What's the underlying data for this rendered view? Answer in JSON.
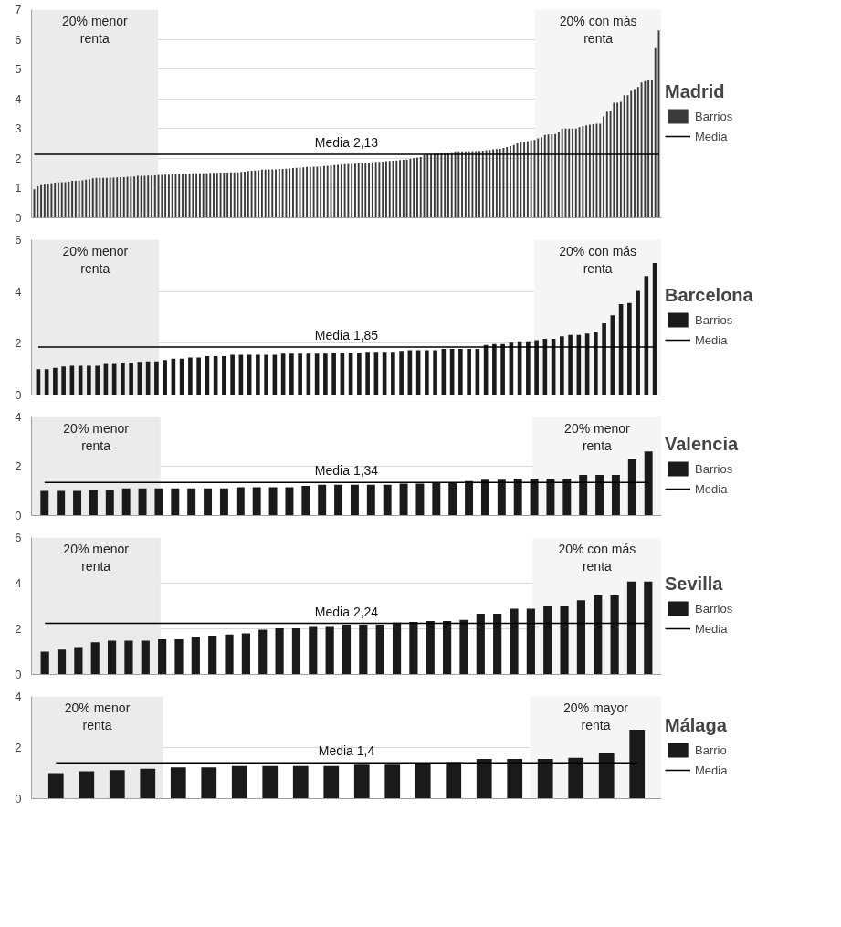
{
  "chart_data": [
    {
      "type": "bar",
      "legend_title": "Madrid",
      "legend": "right",
      "grid": "y",
      "tick_labels": "y",
      "ylim": [
        0,
        7
      ],
      "yticks": [
        0,
        1,
        2,
        3,
        4,
        5,
        6,
        7
      ],
      "categories": [
        null,
        null,
        null,
        null,
        null,
        null,
        null,
        null,
        null,
        null,
        null,
        null,
        null,
        null,
        null,
        null,
        null,
        null,
        null,
        null,
        null,
        null,
        null,
        null,
        null,
        null,
        null,
        null,
        null,
        null,
        null,
        null,
        null,
        null,
        null,
        null,
        null,
        null,
        null,
        null,
        null,
        null,
        null,
        null,
        null,
        null,
        null,
        null,
        null,
        null,
        null,
        null,
        null,
        null,
        null,
        null,
        null,
        null,
        null,
        null,
        null,
        null,
        null,
        null,
        null,
        null,
        null,
        null,
        null,
        null,
        null,
        null,
        null,
        null,
        null,
        null,
        null,
        null,
        null,
        null,
        null,
        null,
        null,
        null,
        null,
        null,
        null,
        null,
        null,
        null,
        null,
        null,
        null,
        null,
        null,
        null,
        null,
        null,
        null,
        null,
        null,
        null,
        null,
        null,
        null,
        null,
        null,
        null,
        null,
        null,
        null,
        null,
        null,
        null,
        null,
        null,
        null,
        null,
        null,
        null,
        null,
        null,
        null,
        null,
        null,
        null,
        null,
        null,
        null,
        null,
        null,
        null,
        null,
        null,
        null,
        null,
        null,
        null,
        null,
        null,
        null,
        null,
        null,
        null,
        null,
        null,
        null,
        null,
        null,
        null,
        null,
        null,
        null,
        null,
        null,
        null,
        null,
        null,
        null,
        null,
        null,
        null,
        null,
        null,
        null,
        null,
        null,
        null,
        null,
        null,
        null,
        null,
        null,
        null,
        null,
        null,
        null,
        null,
        null,
        null,
        null,
        null
      ],
      "series": [
        {
          "name": "Barrios",
          "color": "#3a3a3a",
          "values": [
            0.96,
            1.06,
            1.1,
            1.12,
            1.14,
            1.16,
            1.18,
            1.19,
            1.2,
            1.2,
            1.22,
            1.24,
            1.24,
            1.25,
            1.26,
            1.28,
            1.3,
            1.33,
            1.34,
            1.34,
            1.34,
            1.34,
            1.35,
            1.35,
            1.36,
            1.37,
            1.37,
            1.38,
            1.38,
            1.39,
            1.41,
            1.41,
            1.41,
            1.42,
            1.42,
            1.43,
            1.44,
            1.44,
            1.45,
            1.45,
            1.46,
            1.46,
            1.47,
            1.48,
            1.48,
            1.49,
            1.5,
            1.5,
            1.5,
            1.5,
            1.5,
            1.51,
            1.51,
            1.51,
            1.52,
            1.52,
            1.52,
            1.53,
            1.53,
            1.53,
            1.54,
            1.55,
            1.57,
            1.58,
            1.59,
            1.6,
            1.62,
            1.62,
            1.63,
            1.63,
            1.63,
            1.64,
            1.64,
            1.65,
            1.66,
            1.67,
            1.68,
            1.69,
            1.7,
            1.71,
            1.71,
            1.72,
            1.72,
            1.73,
            1.74,
            1.75,
            1.76,
            1.77,
            1.78,
            1.79,
            1.8,
            1.81,
            1.81,
            1.82,
            1.83,
            1.84,
            1.86,
            1.86,
            1.87,
            1.88,
            1.88,
            1.89,
            1.9,
            1.91,
            1.92,
            1.93,
            1.94,
            1.95,
            1.96,
            1.98,
            2.0,
            2.02,
            2.04,
            2.1,
            2.13,
            2.14,
            2.15,
            2.16,
            2.17,
            2.17,
            2.18,
            2.2,
            2.23,
            2.23,
            2.23,
            2.23,
            2.23,
            2.24,
            2.24,
            2.25,
            2.26,
            2.27,
            2.28,
            2.3,
            2.31,
            2.32,
            2.35,
            2.38,
            2.41,
            2.45,
            2.5,
            2.55,
            2.55,
            2.57,
            2.6,
            2.62,
            2.67,
            2.71,
            2.79,
            2.8,
            2.81,
            2.82,
            2.9,
            3.0,
            3.0,
            3.0,
            3.0,
            3.0,
            3.05,
            3.08,
            3.11,
            3.13,
            3.15,
            3.16,
            3.16,
            3.41,
            3.57,
            3.6,
            3.87,
            3.87,
            3.9,
            4.12,
            4.12,
            4.27,
            4.33,
            4.4,
            4.55,
            4.6,
            4.62,
            4.62,
            5.7,
            6.3
          ]
        },
        {
          "name": "Media",
          "type": "line",
          "color": "#000000",
          "values": [
            2.13,
            2.13,
            2.13,
            2.13,
            2.13,
            2.13,
            2.13,
            2.13,
            2.13,
            2.13,
            2.13,
            2.13,
            2.13,
            2.13,
            2.13,
            2.13,
            2.13,
            2.13,
            2.13,
            2.13,
            2.13,
            2.13,
            2.13,
            2.13,
            2.13,
            2.13,
            2.13,
            2.13,
            2.13,
            2.13,
            2.13,
            2.13,
            2.13,
            2.13,
            2.13,
            2.13,
            2.13,
            2.13,
            2.13,
            2.13,
            2.13,
            2.13,
            2.13,
            2.13,
            2.13,
            2.13,
            2.13,
            2.13,
            2.13,
            2.13,
            2.13,
            2.13,
            2.13,
            2.13,
            2.13,
            2.13,
            2.13,
            2.13,
            2.13,
            2.13,
            2.13,
            2.13,
            2.13,
            2.13,
            2.13,
            2.13,
            2.13,
            2.13,
            2.13,
            2.13,
            2.13,
            2.13,
            2.13,
            2.13,
            2.13,
            2.13,
            2.13,
            2.13,
            2.13,
            2.13,
            2.13,
            2.13,
            2.13,
            2.13,
            2.13,
            2.13,
            2.13,
            2.13,
            2.13,
            2.13,
            2.13,
            2.13,
            2.13,
            2.13,
            2.13,
            2.13,
            2.13,
            2.13,
            2.13,
            2.13,
            2.13,
            2.13,
            2.13,
            2.13,
            2.13,
            2.13,
            2.13,
            2.13,
            2.13,
            2.13,
            2.13,
            2.13,
            2.13,
            2.13,
            2.13,
            2.13,
            2.13,
            2.13,
            2.13,
            2.13,
            2.13,
            2.13,
            2.13,
            2.13,
            2.13,
            2.13,
            2.13,
            2.13,
            2.13,
            2.13,
            2.13,
            2.13,
            2.13,
            2.13,
            2.13,
            2.13,
            2.13,
            2.13,
            2.13,
            2.13,
            2.13,
            2.13,
            2.13,
            2.13,
            2.13,
            2.13,
            2.13,
            2.13,
            2.13,
            2.13,
            2.13,
            2.13,
            2.13,
            2.13,
            2.13,
            2.13,
            2.13,
            2.13,
            2.13,
            2.13,
            2.13,
            2.13,
            2.13,
            2.13,
            2.13,
            2.13,
            2.13,
            2.13,
            2.13,
            2.13,
            2.13,
            2.13,
            2.13,
            2.13,
            2.13,
            2.13,
            2.13,
            2.13,
            2.13,
            2.13,
            2.13,
            2.13
          ]
        }
      ],
      "annotations": [
        "20% menor renta",
        "20% con más renta",
        {
          "text": "Media 2,13",
          "y": 2.13
        }
      ]
    },
    {
      "type": "bar",
      "legend_title": "Barcelona",
      "legend": "right",
      "grid": "y",
      "tick_labels": "y",
      "ylim": [
        0,
        6
      ],
      "yticks": [
        0,
        2,
        4,
        6
      ],
      "categories": [
        null,
        null,
        null,
        null,
        null,
        null,
        null,
        null,
        null,
        null,
        null,
        null,
        null,
        null,
        null,
        null,
        null,
        null,
        null,
        null,
        null,
        null,
        null,
        null,
        null,
        null,
        null,
        null,
        null,
        null,
        null,
        null,
        null,
        null,
        null,
        null,
        null,
        null,
        null,
        null,
        null,
        null,
        null,
        null,
        null,
        null,
        null,
        null,
        null,
        null,
        null,
        null,
        null,
        null,
        null,
        null,
        null,
        null,
        null,
        null,
        null,
        null,
        null,
        null,
        null,
        null,
        null,
        null,
        null,
        null,
        null,
        null,
        null,
        null
      ],
      "series": [
        {
          "name": "Barrios",
          "color": "#1a1a1a",
          "values": [
            1.0,
            1.0,
            1.05,
            1.1,
            1.13,
            1.13,
            1.13,
            1.13,
            1.2,
            1.2,
            1.25,
            1.25,
            1.28,
            1.3,
            1.3,
            1.35,
            1.4,
            1.4,
            1.45,
            1.45,
            1.5,
            1.5,
            1.5,
            1.55,
            1.55,
            1.55,
            1.55,
            1.55,
            1.55,
            1.6,
            1.6,
            1.6,
            1.6,
            1.6,
            1.6,
            1.63,
            1.63,
            1.63,
            1.63,
            1.67,
            1.67,
            1.67,
            1.67,
            1.7,
            1.73,
            1.73,
            1.73,
            1.73,
            1.78,
            1.78,
            1.78,
            1.78,
            1.78,
            1.93,
            1.97,
            1.97,
            2.02,
            2.07,
            2.07,
            2.12,
            2.17,
            2.17,
            2.27,
            2.32,
            2.32,
            2.37,
            2.42,
            2.77,
            3.08,
            3.51,
            3.56,
            4.02,
            4.6,
            5.1
          ]
        },
        {
          "name": "Media",
          "type": "line",
          "color": "#000000",
          "values": [
            1.85,
            1.85,
            1.85,
            1.85,
            1.85,
            1.85,
            1.85,
            1.85,
            1.85,
            1.85,
            1.85,
            1.85,
            1.85,
            1.85,
            1.85,
            1.85,
            1.85,
            1.85,
            1.85,
            1.85,
            1.85,
            1.85,
            1.85,
            1.85,
            1.85,
            1.85,
            1.85,
            1.85,
            1.85,
            1.85,
            1.85,
            1.85,
            1.85,
            1.85,
            1.85,
            1.85,
            1.85,
            1.85,
            1.85,
            1.85,
            1.85,
            1.85,
            1.85,
            1.85,
            1.85,
            1.85,
            1.85,
            1.85,
            1.85,
            1.85,
            1.85,
            1.85,
            1.85,
            1.85,
            1.85,
            1.85,
            1.85,
            1.85,
            1.85,
            1.85,
            1.85,
            1.85,
            1.85,
            1.85,
            1.85,
            1.85,
            1.85,
            1.85,
            1.85,
            1.85,
            1.85,
            1.85,
            1.85,
            1.85
          ]
        }
      ],
      "annotations": [
        "20% menor renta",
        "20% con más renta",
        {
          "text": "Media 1,85",
          "y": 1.85
        }
      ]
    },
    {
      "type": "bar",
      "legend_title": "Valencia",
      "legend": "right",
      "grid": "y",
      "tick_labels": "y",
      "ylim": [
        0,
        4
      ],
      "yticks": [
        0,
        2,
        4
      ],
      "categories": [
        null,
        null,
        null,
        null,
        null,
        null,
        null,
        null,
        null,
        null,
        null,
        null,
        null,
        null,
        null,
        null,
        null,
        null,
        null,
        null,
        null,
        null,
        null,
        null,
        null,
        null,
        null,
        null,
        null,
        null,
        null,
        null,
        null,
        null,
        null,
        null,
        null,
        null
      ],
      "series": [
        {
          "name": "Barrios",
          "color": "#1a1a1a",
          "values": [
            1.0,
            1.0,
            1.0,
            1.05,
            1.05,
            1.1,
            1.1,
            1.1,
            1.1,
            1.1,
            1.1,
            1.1,
            1.15,
            1.15,
            1.15,
            1.15,
            1.2,
            1.25,
            1.25,
            1.25,
            1.25,
            1.25,
            1.3,
            1.3,
            1.35,
            1.35,
            1.4,
            1.45,
            1.45,
            1.5,
            1.5,
            1.5,
            1.5,
            1.65,
            1.65,
            1.65,
            2.28,
            2.6
          ]
        },
        {
          "name": "Media",
          "type": "line",
          "color": "#000000",
          "values": [
            1.34,
            1.34,
            1.34,
            1.34,
            1.34,
            1.34,
            1.34,
            1.34,
            1.34,
            1.34,
            1.34,
            1.34,
            1.34,
            1.34,
            1.34,
            1.34,
            1.34,
            1.34,
            1.34,
            1.34,
            1.34,
            1.34,
            1.34,
            1.34,
            1.34,
            1.34,
            1.34,
            1.34,
            1.34,
            1.34,
            1.34,
            1.34,
            1.34,
            1.34,
            1.34,
            1.34,
            1.34,
            1.34
          ]
        }
      ],
      "annotations": [
        "20% menor renta",
        "20% menor renta",
        {
          "text": "Media 1,34",
          "y": 1.34
        }
      ]
    },
    {
      "type": "bar",
      "legend_title": "Sevilla",
      "legend": "right",
      "grid": "y",
      "tick_labels": "y",
      "ylim": [
        0,
        6
      ],
      "yticks": [
        0,
        2,
        4,
        6
      ],
      "categories": [
        null,
        null,
        null,
        null,
        null,
        null,
        null,
        null,
        null,
        null,
        null,
        null,
        null,
        null,
        null,
        null,
        null,
        null,
        null,
        null,
        null,
        null,
        null,
        null,
        null,
        null,
        null,
        null,
        null,
        null,
        null,
        null,
        null,
        null,
        null,
        null,
        null
      ],
      "series": [
        {
          "name": "Barrios",
          "color": "#1a1a1a",
          "values": [
            1.0,
            1.09,
            1.2,
            1.41,
            1.48,
            1.48,
            1.48,
            1.54,
            1.54,
            1.64,
            1.7,
            1.75,
            1.8,
            1.96,
            2.02,
            2.02,
            2.12,
            2.12,
            2.18,
            2.18,
            2.18,
            2.27,
            2.3,
            2.34,
            2.34,
            2.39,
            2.66,
            2.66,
            2.88,
            2.88,
            2.98,
            2.98,
            3.25,
            3.46,
            3.46,
            4.07,
            4.07
          ]
        },
        {
          "name": "Media",
          "type": "line",
          "color": "#000000",
          "values": [
            2.24,
            2.24,
            2.24,
            2.24,
            2.24,
            2.24,
            2.24,
            2.24,
            2.24,
            2.24,
            2.24,
            2.24,
            2.24,
            2.24,
            2.24,
            2.24,
            2.24,
            2.24,
            2.24,
            2.24,
            2.24,
            2.24,
            2.24,
            2.24,
            2.24,
            2.24,
            2.24,
            2.24,
            2.24,
            2.24,
            2.24,
            2.24,
            2.24,
            2.24,
            2.24,
            2.24,
            2.24
          ]
        }
      ],
      "annotations": [
        "20% menor renta",
        "20% con más renta",
        {
          "text": "Media 2,24",
          "y": 2.24
        }
      ]
    },
    {
      "type": "bar",
      "legend_title": "Málaga",
      "legend": "right",
      "grid": "y",
      "tick_labels": "y",
      "ylim": [
        0,
        4
      ],
      "yticks": [
        0,
        2,
        4
      ],
      "categories": [
        null,
        null,
        null,
        null,
        null,
        null,
        null,
        null,
        null,
        null,
        null,
        null,
        null,
        null,
        null,
        null,
        null,
        null,
        null,
        null
      ],
      "series": [
        {
          "name": "Barrio",
          "color": "#1a1a1a",
          "values": [
            1.0,
            1.07,
            1.12,
            1.17,
            1.22,
            1.22,
            1.28,
            1.28,
            1.28,
            1.28,
            1.33,
            1.33,
            1.4,
            1.43,
            1.55,
            1.55,
            1.55,
            1.6,
            1.78,
            2.7
          ]
        },
        {
          "name": "Media",
          "type": "line",
          "color": "#000000",
          "values": [
            1.4,
            1.4,
            1.4,
            1.4,
            1.4,
            1.4,
            1.4,
            1.4,
            1.4,
            1.4,
            1.4,
            1.4,
            1.4,
            1.4,
            1.4,
            1.4,
            1.4,
            1.4,
            1.4,
            1.4
          ]
        }
      ],
      "annotations": [
        "20% menor renta",
        "20% mayor renta",
        {
          "text": "Media 1,4",
          "y": 1.4
        }
      ]
    }
  ]
}
